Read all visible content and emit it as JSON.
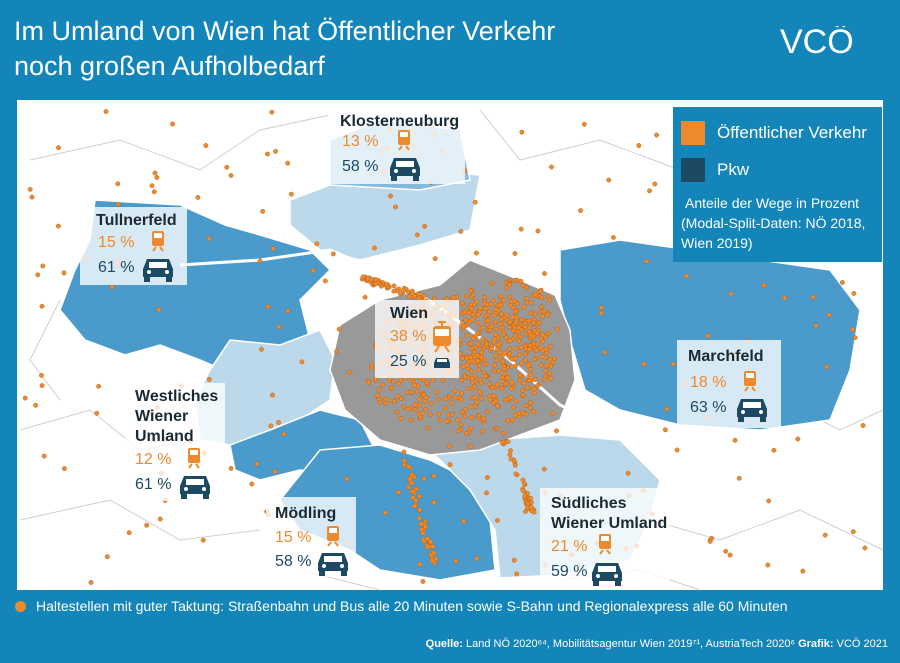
{
  "title": {
    "line1": "Im Umland von Wien hat Öffentlicher Verkehr",
    "line2": "noch großen Aufholbedarf"
  },
  "logo": {
    "text": "VCÖ"
  },
  "legend": {
    "items": [
      {
        "label": "Öffentlicher Verkehr",
        "color": "#ee8a2e"
      },
      {
        "label": "Pkw",
        "color": "#1d4a63"
      }
    ],
    "note_line1": "Anteile der Wege in Prozent",
    "note_line2": "(Modal-Split-Daten: NÖ 2018,",
    "note_line3": "Wien 2019)"
  },
  "regions": [
    {
      "name": "Klosterneuburg",
      "pt": "13 %",
      "car": "58 %"
    },
    {
      "name": "Tullnerfeld",
      "pt": "15 %",
      "car": "61 %"
    },
    {
      "name": "Wien",
      "pt": "38 %",
      "car": "25 %"
    },
    {
      "name": "Marchfeld",
      "pt": "18 %",
      "car": "63 %"
    },
    {
      "name_lines": [
        "Westliches",
        "Wiener",
        "Umland"
      ],
      "pt": "12 %",
      "car": "61 %"
    },
    {
      "name": "Mödling",
      "pt": "15 %",
      "car": "58 %"
    },
    {
      "name_lines": [
        "Südliches",
        "Wiener Umland"
      ],
      "pt": "21 %",
      "car": "59 %"
    }
  ],
  "footnote": "Haltestellen mit guter Taktung: Straßenbahn und Bus alle 20 Minuten sowie S-Bahn und Regionalexpress alle 60 Minuten",
  "source": {
    "label1": "Quelle:",
    "text1": "Land NÖ 2020⁶⁴, Mobilitätsagentur Wien 2019⁷¹, AustriaTech 2020⁶",
    "label2": "Grafik:",
    "text2": "VCÖ 2021"
  },
  "colors": {
    "background": "#1485b8",
    "region_dark": "#4a9bcc",
    "region_mid": "#85bade",
    "region_light": "#bcd9ec",
    "vienna": "#999999",
    "outside": "#ffffff",
    "stops": "#ee8a2e"
  },
  "icons": [
    "train-icon",
    "tram-icon",
    "car-icon",
    "vco-logo"
  ]
}
